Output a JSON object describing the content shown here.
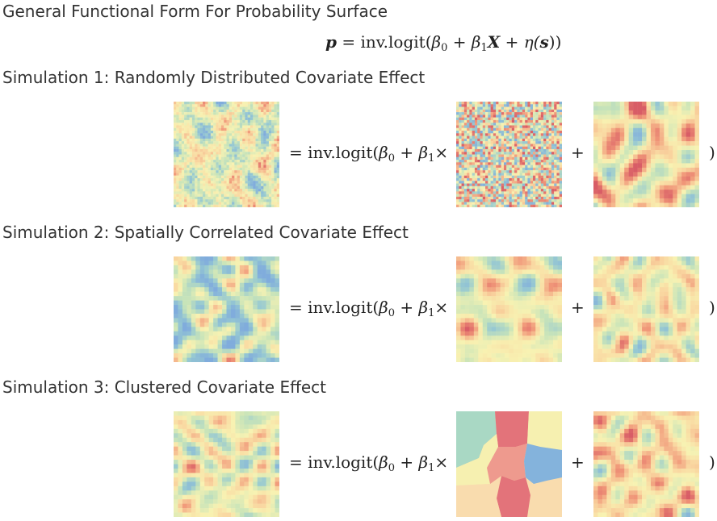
{
  "title": "General Functional Form For Probability Surface",
  "formula": {
    "p": "p",
    "eq": "=",
    "func": "inv.logit(",
    "beta0": "β",
    "sub0": "0",
    "plus1": "+",
    "beta1": "β",
    "sub1": "1",
    "X": "X",
    "plus2": "+",
    "eta": "η(",
    "s": "s",
    "close": "))"
  },
  "row_formula": {
    "eq": "=",
    "func": "inv.logit(",
    "beta0": "β",
    "sub0": "0",
    "plus": "+",
    "beta1": "β",
    "sub1": "1",
    "times": "×",
    "plus_op": "+",
    "close_op": ")"
  },
  "simulations": [
    {
      "label": "Simulation 1: Randomly Distributed Covariate Effect"
    },
    {
      "label": "Simulation 2: Spatially Correlated Covariate Effect"
    },
    {
      "label": "Simulation 3: Clustered Covariate Effect"
    }
  ],
  "colors": {
    "red": "#e3737a",
    "orange": "#f4a97c",
    "yellow": "#f6f0b0",
    "lightgreen": "#c5e5b5",
    "teal": "#a9d8c4",
    "blue": "#84b3dc",
    "peach": "#f9dcae"
  }
}
